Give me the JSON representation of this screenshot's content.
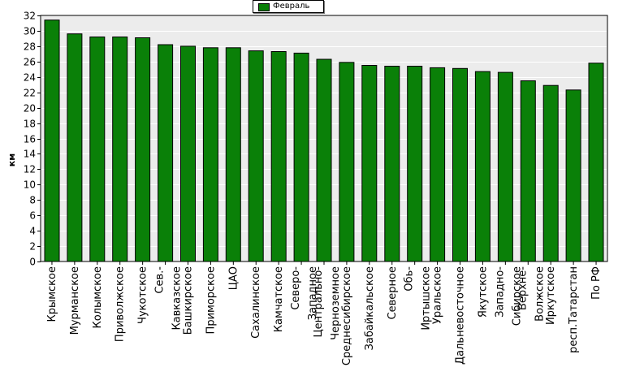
{
  "colors": {
    "bar": "#0a8008",
    "bar_border": "#000000",
    "plot_bg": "#ececec",
    "grid": "#ffffff"
  },
  "legend": {
    "label": "Февраль"
  },
  "chart_data": {
    "type": "bar",
    "ylabel": "км",
    "xlabel": "",
    "ylim": [
      0,
      32
    ],
    "yticks": [
      0,
      2,
      4,
      6,
      8,
      10,
      12,
      14,
      16,
      18,
      20,
      22,
      24,
      26,
      28,
      30,
      32
    ],
    "grid": true,
    "legend_position": "top-center",
    "categories": [
      "Крымское",
      "Мурманское",
      "Колымское",
      "Приволжское",
      "Чукотское",
      "Сев.-Кавказское",
      "Башкирское",
      "Приморское",
      "ЦАО",
      "Сахалинское",
      "Камчатское",
      "Северо-Западное",
      "Центрально-Черноземное",
      "Среднесибирское",
      "Забайкальское",
      "Северное",
      "Обь-Иртышское",
      "Уральское",
      "Дальневосточное",
      "Якутское",
      "Западно-Сибирское",
      "Верхне-Волжское",
      "Иркутское",
      "респ.Татарстан",
      "По РФ"
    ],
    "category_lines": [
      [
        "Крымское"
      ],
      [
        "Мурманское"
      ],
      [
        "Колымское"
      ],
      [
        "Приволжское"
      ],
      [
        "Чукотское"
      ],
      [
        "Сев.-",
        "Кавказское"
      ],
      [
        "Башкирское"
      ],
      [
        "Приморское"
      ],
      [
        "ЦАО"
      ],
      [
        "Сахалинское"
      ],
      [
        "Камчатское"
      ],
      [
        "Северо-",
        "Западное"
      ],
      [
        "Центрально-",
        "Черноземное"
      ],
      [
        "Среднесибирское"
      ],
      [
        "Забайкальское"
      ],
      [
        "Северное"
      ],
      [
        "Обь-",
        "Иртышское"
      ],
      [
        "Уральское"
      ],
      [
        "Дальневосточное"
      ],
      [
        "Якутское"
      ],
      [
        "Западно-",
        "Сибирское"
      ],
      [
        "Верхне-",
        "Волжское"
      ],
      [
        "Иркутское"
      ],
      [
        "респ.Татарстан"
      ],
      [
        "По РФ"
      ]
    ],
    "series": [
      {
        "name": "Февраль",
        "values": [
          31.4,
          29.6,
          29.2,
          29.2,
          29.1,
          28.2,
          28.0,
          27.8,
          27.8,
          27.4,
          27.3,
          27.1,
          26.3,
          25.9,
          25.5,
          25.4,
          25.4,
          25.2,
          25.1,
          24.7,
          24.6,
          23.5,
          22.9,
          22.3,
          25.8
        ]
      }
    ]
  }
}
